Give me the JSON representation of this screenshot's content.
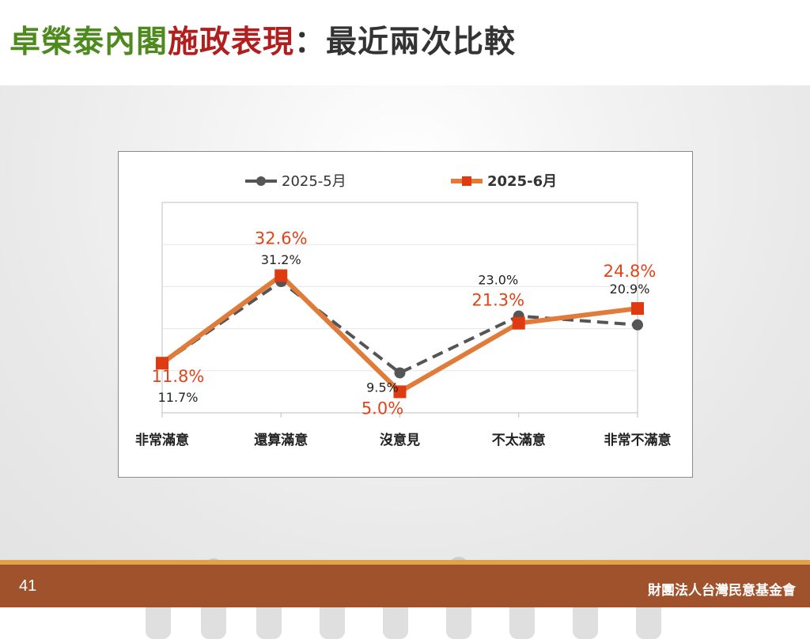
{
  "slide": {
    "title_parts": [
      {
        "text": "卓榮泰內閣",
        "color": "#4e8a1e"
      },
      {
        "text": "施政表現",
        "color": "#b01e1e"
      },
      {
        "text": "：最近兩次比較",
        "color": "#333333"
      }
    ],
    "page_number": "41",
    "organization": "財團法人台灣民意基金會"
  },
  "chart_data": {
    "type": "line",
    "categories": [
      "非常滿意",
      "還算滿意",
      "沒意見",
      "不太滿意",
      "非常不滿意"
    ],
    "series": [
      {
        "name": "2025-5月",
        "values": [
          11.7,
          31.2,
          9.5,
          23.0,
          20.9
        ],
        "labels": [
          "11.7%",
          "31.2%",
          "9.5%",
          "23.0%",
          "20.9%"
        ],
        "color": "#555555",
        "label_color": "#222222",
        "style": "dashed",
        "marker": "circle"
      },
      {
        "name": "2025-6月",
        "values": [
          11.8,
          32.6,
          5.0,
          21.3,
          24.8
        ],
        "labels": [
          "11.8%",
          "32.6%",
          "5.0%",
          "21.3%",
          "24.8%"
        ],
        "color": "#e07b39",
        "label_color": "#e0451a",
        "marker_color": "#e03a10",
        "style": "solid",
        "marker": "square"
      }
    ],
    "legend_position": "top",
    "grid": true
  }
}
